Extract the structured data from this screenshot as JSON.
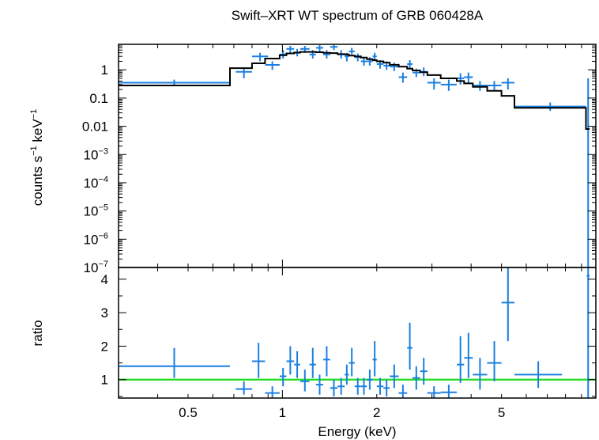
{
  "chart_data": {
    "type": "scatter",
    "title": "Swift–XRT WT spectrum of GRB 060428A",
    "xlabel": "Energy (keV)",
    "x_scale": "log",
    "xlim": [
      0.3,
      10
    ],
    "x_ticks": [
      {
        "value": 0.5,
        "label": "0.5"
      },
      {
        "value": 1,
        "label": "1"
      },
      {
        "value": 2,
        "label": "2"
      },
      {
        "value": 5,
        "label": "5"
      }
    ],
    "panels": [
      {
        "id": "spectrum",
        "ylabel": {
          "base": "counts s",
          "exp1": "−1",
          "mid": " keV",
          "exp2": "−1"
        },
        "y_scale": "log",
        "ylim": [
          1e-07,
          8
        ],
        "y_ticks": [
          {
            "value": 1,
            "label": "1"
          },
          {
            "value": 0.1,
            "label": "0.1"
          },
          {
            "value": 0.01,
            "label": "0.01"
          },
          {
            "value": 0.001,
            "label": "10",
            "exp": "−3"
          },
          {
            "value": 0.0001,
            "label": "10",
            "exp": "−4"
          },
          {
            "value": 1e-05,
            "label": "10",
            "exp": "−5"
          },
          {
            "value": 1e-06,
            "label": "10",
            "exp": "−6"
          },
          {
            "value": 1e-07,
            "label": "10",
            "exp": "−7"
          }
        ],
        "series": [
          {
            "style": "errorbar",
            "color": "#1a7fe0",
            "points": [
              {
                "x0": 0.3,
                "x1": 0.68,
                "y": 0.35,
                "ylo": 0.28,
                "yhi": 0.45
              },
              {
                "x0": 0.71,
                "x1": 0.8,
                "y": 0.85,
                "ylo": 0.5,
                "yhi": 1.2
              },
              {
                "x0": 0.8,
                "x1": 0.9,
                "y": 3.0,
                "ylo": 2.0,
                "yhi": 4.0
              },
              {
                "x0": 0.88,
                "x1": 0.98,
                "y": 1.5,
                "ylo": 1.0,
                "yhi": 2.0
              },
              {
                "x0": 0.98,
                "x1": 1.03,
                "y": 3.5,
                "ylo": 2.5,
                "yhi": 5.0
              },
              {
                "x0": 1.03,
                "x1": 1.09,
                "y": 5.5,
                "ylo": 4.0,
                "yhi": 7.0
              },
              {
                "x0": 1.09,
                "x1": 1.14,
                "y": 4.0,
                "ylo": 3.0,
                "yhi": 5.5
              },
              {
                "x0": 1.14,
                "x1": 1.22,
                "y": 5.5,
                "ylo": 4.0,
                "yhi": 7.0
              },
              {
                "x0": 1.22,
                "x1": 1.28,
                "y": 3.5,
                "ylo": 2.5,
                "yhi": 5.0
              },
              {
                "x0": 1.28,
                "x1": 1.35,
                "y": 6.0,
                "ylo": 4.5,
                "yhi": 7.5
              },
              {
                "x0": 1.35,
                "x1": 1.42,
                "y": 3.5,
                "ylo": 2.5,
                "yhi": 5.0
              },
              {
                "x0": 1.42,
                "x1": 1.5,
                "y": 6.5,
                "ylo": 5.0,
                "yhi": 7.8
              },
              {
                "x0": 1.5,
                "x1": 1.58,
                "y": 3.5,
                "ylo": 2.5,
                "yhi": 5.0
              },
              {
                "x0": 1.58,
                "x1": 1.63,
                "y": 3.0,
                "ylo": 2.0,
                "yhi": 4.0
              },
              {
                "x0": 1.63,
                "x1": 1.7,
                "y": 4.5,
                "ylo": 3.5,
                "yhi": 6.0
              },
              {
                "x0": 1.7,
                "x1": 1.78,
                "y": 2.8,
                "ylo": 2.0,
                "yhi": 3.8
              },
              {
                "x0": 1.78,
                "x1": 1.86,
                "y": 2.0,
                "ylo": 1.4,
                "yhi": 2.8
              },
              {
                "x0": 1.86,
                "x1": 1.94,
                "y": 2.0,
                "ylo": 1.4,
                "yhi": 2.8
              },
              {
                "x0": 1.94,
                "x1": 2.0,
                "y": 3.0,
                "ylo": 2.0,
                "yhi": 4.0
              },
              {
                "x0": 2.0,
                "x1": 2.1,
                "y": 1.6,
                "ylo": 1.1,
                "yhi": 2.2
              },
              {
                "x0": 2.1,
                "x1": 2.2,
                "y": 1.4,
                "ylo": 1.0,
                "yhi": 2.0
              },
              {
                "x0": 2.2,
                "x1": 2.35,
                "y": 1.3,
                "ylo": 0.9,
                "yhi": 1.8
              },
              {
                "x0": 2.35,
                "x1": 2.5,
                "y": 0.55,
                "ylo": 0.35,
                "yhi": 0.8
              },
              {
                "x0": 2.5,
                "x1": 2.6,
                "y": 1.6,
                "ylo": 1.1,
                "yhi": 2.2
              },
              {
                "x0": 2.6,
                "x1": 2.75,
                "y": 0.8,
                "ylo": 0.55,
                "yhi": 1.1
              },
              {
                "x0": 2.75,
                "x1": 2.9,
                "y": 0.85,
                "ylo": 0.6,
                "yhi": 1.2
              },
              {
                "x0": 2.9,
                "x1": 3.2,
                "y": 0.35,
                "ylo": 0.2,
                "yhi": 0.5
              },
              {
                "x0": 3.2,
                "x1": 3.6,
                "y": 0.3,
                "ylo": 0.18,
                "yhi": 0.45
              },
              {
                "x0": 3.6,
                "x1": 3.8,
                "y": 0.5,
                "ylo": 0.3,
                "yhi": 0.75
              },
              {
                "x0": 3.8,
                "x1": 4.05,
                "y": 0.55,
                "ylo": 0.35,
                "yhi": 0.8
              },
              {
                "x0": 4.05,
                "x1": 4.5,
                "y": 0.28,
                "ylo": 0.18,
                "yhi": 0.4
              },
              {
                "x0": 4.5,
                "x1": 5.0,
                "y": 0.28,
                "ylo": 0.18,
                "yhi": 0.4
              },
              {
                "x0": 5.0,
                "x1": 5.5,
                "y": 0.35,
                "ylo": 0.2,
                "yhi": 0.5
              },
              {
                "x0": 5.5,
                "x1": 9.3,
                "y": 0.05,
                "ylo": 0.035,
                "yhi": 0.07
              },
              {
                "x0": 9.35,
                "x1": 9.55,
                "y": 1e-07,
                "ylo": 1e-07,
                "yhi": 0.5
              }
            ]
          },
          {
            "style": "step",
            "color": "#000000",
            "steps": [
              {
                "x0": 0.3,
                "x1": 0.68,
                "y": 0.28
              },
              {
                "x0": 0.68,
                "x1": 0.8,
                "y": 1.15
              },
              {
                "x0": 0.8,
                "x1": 0.88,
                "y": 1.7
              },
              {
                "x0": 0.88,
                "x1": 0.98,
                "y": 2.5
              },
              {
                "x0": 0.98,
                "x1": 1.03,
                "y": 3.3
              },
              {
                "x0": 1.03,
                "x1": 1.09,
                "y": 3.8
              },
              {
                "x0": 1.09,
                "x1": 1.14,
                "y": 4.1
              },
              {
                "x0": 1.14,
                "x1": 1.22,
                "y": 4.3
              },
              {
                "x0": 1.22,
                "x1": 1.28,
                "y": 4.3
              },
              {
                "x0": 1.28,
                "x1": 1.35,
                "y": 4.2
              },
              {
                "x0": 1.35,
                "x1": 1.42,
                "y": 4.0
              },
              {
                "x0": 1.42,
                "x1": 1.5,
                "y": 3.9
              },
              {
                "x0": 1.5,
                "x1": 1.58,
                "y": 3.6
              },
              {
                "x0": 1.58,
                "x1": 1.63,
                "y": 3.5
              },
              {
                "x0": 1.63,
                "x1": 1.7,
                "y": 3.2
              },
              {
                "x0": 1.7,
                "x1": 1.78,
                "y": 3.0
              },
              {
                "x0": 1.78,
                "x1": 1.86,
                "y": 2.7
              },
              {
                "x0": 1.86,
                "x1": 1.94,
                "y": 2.4
              },
              {
                "x0": 1.94,
                "x1": 2.0,
                "y": 2.2
              },
              {
                "x0": 2.0,
                "x1": 2.1,
                "y": 2.0
              },
              {
                "x0": 2.1,
                "x1": 2.2,
                "y": 1.8
              },
              {
                "x0": 2.2,
                "x1": 2.35,
                "y": 1.5
              },
              {
                "x0": 2.35,
                "x1": 2.5,
                "y": 1.3
              },
              {
                "x0": 2.5,
                "x1": 2.6,
                "y": 1.1
              },
              {
                "x0": 2.6,
                "x1": 2.75,
                "y": 0.95
              },
              {
                "x0": 2.75,
                "x1": 2.9,
                "y": 0.82
              },
              {
                "x0": 2.9,
                "x1": 3.2,
                "y": 0.65
              },
              {
                "x0": 3.2,
                "x1": 3.6,
                "y": 0.5
              },
              {
                "x0": 3.6,
                "x1": 3.8,
                "y": 0.4
              },
              {
                "x0": 3.8,
                "x1": 4.05,
                "y": 0.33
              },
              {
                "x0": 4.05,
                "x1": 4.5,
                "y": 0.25
              },
              {
                "x0": 4.5,
                "x1": 5.0,
                "y": 0.18
              },
              {
                "x0": 5.0,
                "x1": 5.5,
                "y": 0.12
              },
              {
                "x0": 5.5,
                "x1": 9.3,
                "y": 0.045
              },
              {
                "x0": 9.3,
                "x1": 9.55,
                "y": 0.008
              }
            ]
          }
        ]
      },
      {
        "id": "ratio",
        "ylabel": "ratio",
        "y_scale": "linear",
        "ylim": [
          0.45,
          4.35
        ],
        "y_ticks": [
          {
            "value": 1,
            "label": "1"
          },
          {
            "value": 2,
            "label": "2"
          },
          {
            "value": 3,
            "label": "3"
          },
          {
            "value": 4,
            "label": "4"
          }
        ],
        "reference_line": {
          "y": 1,
          "color": "#22dd22"
        },
        "series": [
          {
            "style": "errorbar",
            "color": "#1a7fe0",
            "points": [
              {
                "x0": 0.3,
                "x1": 0.68,
                "y": 1.4,
                "ylo": 1.05,
                "yhi": 1.95
              },
              {
                "x0": 0.71,
                "x1": 0.8,
                "y": 0.72,
                "ylo": 0.55,
                "yhi": 0.95
              },
              {
                "x0": 0.8,
                "x1": 0.88,
                "y": 1.55,
                "ylo": 1.05,
                "yhi": 2.1
              },
              {
                "x0": 0.88,
                "x1": 0.98,
                "y": 0.6,
                "ylo": 0.45,
                "yhi": 0.8
              },
              {
                "x0": 0.98,
                "x1": 1.03,
                "y": 1.1,
                "ylo": 0.8,
                "yhi": 1.35
              },
              {
                "x0": 1.03,
                "x1": 1.09,
                "y": 1.55,
                "ylo": 1.15,
                "yhi": 2.0
              },
              {
                "x0": 1.09,
                "x1": 1.14,
                "y": 1.45,
                "ylo": 1.05,
                "yhi": 1.85
              },
              {
                "x0": 1.14,
                "x1": 1.22,
                "y": 0.95,
                "ylo": 0.65,
                "yhi": 1.3
              },
              {
                "x0": 1.22,
                "x1": 1.28,
                "y": 1.45,
                "ylo": 1.05,
                "yhi": 1.95
              },
              {
                "x0": 1.28,
                "x1": 1.35,
                "y": 0.85,
                "ylo": 0.55,
                "yhi": 1.15
              },
              {
                "x0": 1.35,
                "x1": 1.42,
                "y": 1.6,
                "ylo": 1.1,
                "yhi": 2.0
              },
              {
                "x0": 1.42,
                "x1": 1.5,
                "y": 0.75,
                "ylo": 0.5,
                "yhi": 1.0
              },
              {
                "x0": 1.5,
                "x1": 1.58,
                "y": 0.8,
                "ylo": 0.55,
                "yhi": 1.05
              },
              {
                "x0": 1.58,
                "x1": 1.63,
                "y": 1.15,
                "ylo": 0.85,
                "yhi": 1.45
              },
              {
                "x0": 1.63,
                "x1": 1.7,
                "y": 1.5,
                "ylo": 1.1,
                "yhi": 1.95
              },
              {
                "x0": 1.7,
                "x1": 1.78,
                "y": 0.8,
                "ylo": 0.55,
                "yhi": 1.05
              },
              {
                "x0": 1.78,
                "x1": 1.86,
                "y": 0.8,
                "ylo": 0.55,
                "yhi": 1.05
              },
              {
                "x0": 1.86,
                "x1": 1.94,
                "y": 1.0,
                "ylo": 0.7,
                "yhi": 1.3
              },
              {
                "x0": 1.94,
                "x1": 2.0,
                "y": 1.6,
                "ylo": 1.1,
                "yhi": 2.15
              },
              {
                "x0": 2.0,
                "x1": 2.1,
                "y": 0.8,
                "ylo": 0.55,
                "yhi": 1.05
              },
              {
                "x0": 2.1,
                "x1": 2.2,
                "y": 0.75,
                "ylo": 0.5,
                "yhi": 1.0
              },
              {
                "x0": 2.2,
                "x1": 2.35,
                "y": 1.1,
                "ylo": 0.75,
                "yhi": 1.45
              },
              {
                "x0": 2.35,
                "x1": 2.5,
                "y": 0.6,
                "ylo": 0.4,
                "yhi": 0.85
              },
              {
                "x0": 2.5,
                "x1": 2.6,
                "y": 1.95,
                "ylo": 1.3,
                "yhi": 2.7
              },
              {
                "x0": 2.6,
                "x1": 2.75,
                "y": 1.05,
                "ylo": 0.7,
                "yhi": 1.4
              },
              {
                "x0": 2.75,
                "x1": 2.9,
                "y": 1.25,
                "ylo": 0.85,
                "yhi": 1.65
              },
              {
                "x0": 2.9,
                "x1": 3.2,
                "y": 0.6,
                "ylo": 0.45,
                "yhi": 0.8
              },
              {
                "x0": 3.2,
                "x1": 3.6,
                "y": 0.62,
                "ylo": 0.45,
                "yhi": 0.85
              },
              {
                "x0": 3.6,
                "x1": 3.8,
                "y": 1.45,
                "ylo": 0.9,
                "yhi": 2.3
              },
              {
                "x0": 3.8,
                "x1": 4.05,
                "y": 1.65,
                "ylo": 1.05,
                "yhi": 2.4
              },
              {
                "x0": 4.05,
                "x1": 4.5,
                "y": 1.15,
                "ylo": 0.7,
                "yhi": 1.65
              },
              {
                "x0": 4.5,
                "x1": 5.0,
                "y": 1.5,
                "ylo": 0.95,
                "yhi": 2.15
              },
              {
                "x0": 5.0,
                "x1": 5.5,
                "y": 3.3,
                "ylo": 2.15,
                "yhi": 4.35
              },
              {
                "x0": 5.5,
                "x1": 7.8,
                "y": 1.15,
                "ylo": 0.75,
                "yhi": 1.55
              },
              {
                "x0": 9.35,
                "x1": 9.55,
                "y": 4.1,
                "ylo": 0.45,
                "yhi": 4.35
              }
            ]
          }
        ]
      }
    ]
  }
}
